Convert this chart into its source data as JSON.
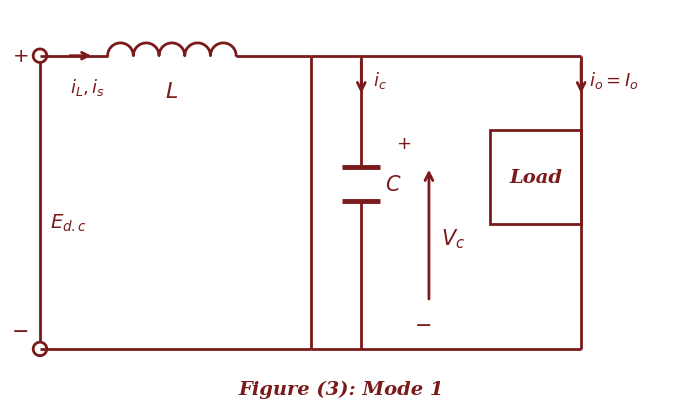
{
  "color": "#7B1A1A",
  "bg_color": "#FFFFFF",
  "title": "Figure (3): Mode 1",
  "title_fontsize": 14,
  "figsize": [
    6.82,
    4.1
  ],
  "dpi": 100
}
